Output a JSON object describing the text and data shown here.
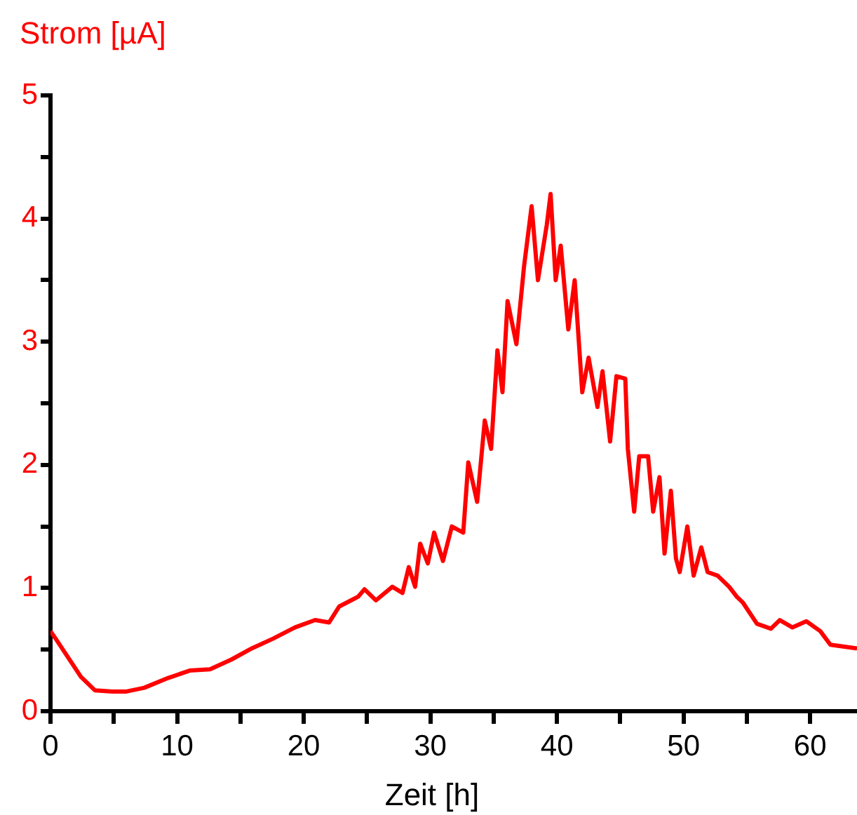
{
  "chart_data": {
    "type": "line",
    "xlabel": "Zeit [h]",
    "ylabel": "Strom [µA]",
    "xlim": [
      0,
      63.7
    ],
    "ylim": [
      0,
      5
    ],
    "xticks": [
      0,
      {
        "value": 5,
        "label": null
      },
      10,
      {
        "value": 15,
        "label": null
      },
      20,
      {
        "value": 25,
        "label": null
      },
      30,
      {
        "value": 35,
        "label": null
      },
      40,
      {
        "value": 45,
        "label": null
      },
      50,
      {
        "value": 55,
        "label": null
      },
      60
    ],
    "yticks": [
      0,
      {
        "value": 0.5,
        "label": null
      },
      1,
      {
        "value": 1.5,
        "label": null
      },
      2,
      {
        "value": 2.5,
        "label": null
      },
      3,
      {
        "value": 3.5,
        "label": null
      },
      4,
      {
        "value": 4.5,
        "label": null
      },
      5
    ],
    "grid": false,
    "legend": false,
    "marker": "none",
    "line_style": "solid",
    "series": [
      {
        "color": "#ff0000",
        "x": [
          0,
          0.4,
          2.4,
          3.5,
          4.9,
          6,
          7.4,
          9.3,
          11,
          12.6,
          14.3,
          15.9,
          17.6,
          19.3,
          20.9,
          22,
          22.8,
          24.3,
          24.8,
          25.7,
          27,
          27.8,
          28.3,
          28.8,
          29.2,
          29.8,
          30.3,
          31,
          31.7,
          32.6,
          33,
          33.7,
          34.3,
          34.8,
          35.3,
          35.7,
          36.1,
          36.8,
          37.4,
          38,
          38.5,
          39.2,
          39.5,
          39.9,
          40.3,
          40.9,
          41.4,
          42,
          42.5,
          43.2,
          43.6,
          44.2,
          44.7,
          45.4,
          45.6,
          46.1,
          46.5,
          47.2,
          47.6,
          48.1,
          48.5,
          49,
          49.4,
          49.7,
          50.3,
          50.8,
          51.4,
          51.9,
          52.7,
          53.6,
          54.2,
          54.7,
          55.8,
          56.9,
          57.6,
          58.6,
          59.7,
          60.8,
          61.6,
          63,
          63.7
        ],
        "values": [
          0.65,
          0.59,
          0.28,
          0.17,
          0.16,
          0.16,
          0.19,
          0.27,
          0.33,
          0.34,
          0.42,
          0.51,
          0.59,
          0.68,
          0.74,
          0.72,
          0.85,
          0.93,
          0.99,
          0.9,
          1.01,
          0.96,
          1.17,
          1.01,
          1.36,
          1.2,
          1.45,
          1.22,
          1.5,
          1.45,
          2.02,
          1.7,
          2.36,
          2.13,
          2.93,
          2.59,
          3.33,
          2.98,
          3.61,
          4.1,
          3.5,
          3.95,
          4.2,
          3.5,
          3.78,
          3.1,
          3.5,
          2.59,
          2.87,
          2.47,
          2.76,
          2.19,
          2.72,
          2.7,
          2.13,
          1.62,
          2.07,
          2.07,
          1.62,
          1.9,
          1.28,
          1.79,
          1.24,
          1.13,
          1.5,
          1.1,
          1.33,
          1.13,
          1.1,
          1.01,
          0.93,
          0.88,
          0.71,
          0.67,
          0.74,
          0.68,
          0.73,
          0.65,
          0.54,
          0.52,
          0.51
        ]
      }
    ]
  }
}
